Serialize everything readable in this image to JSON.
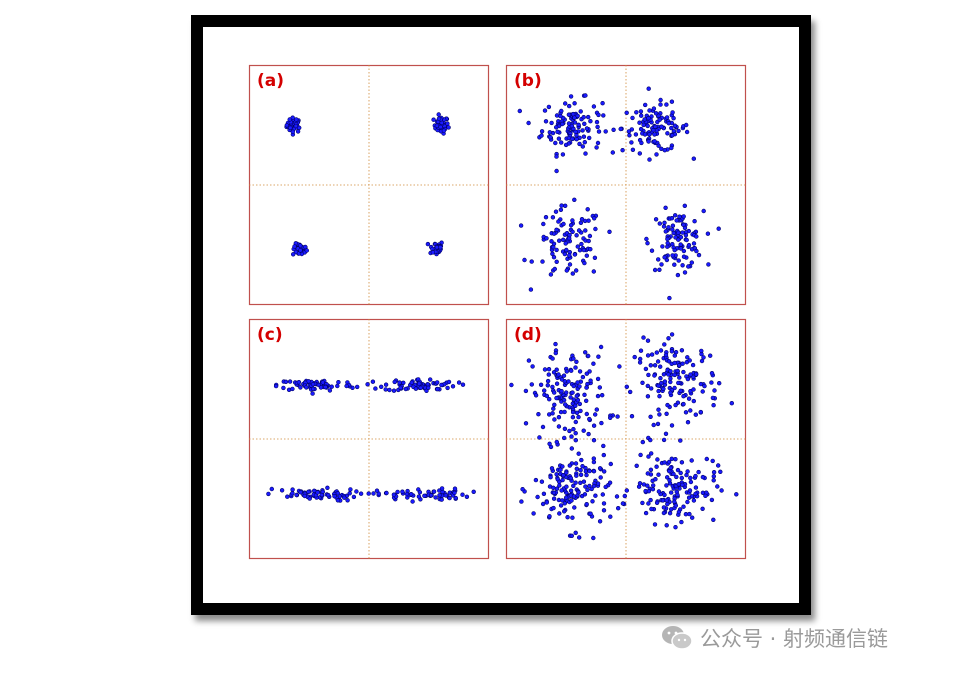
{
  "colors": {
    "frame": "#000000",
    "panel_border": "#c0504d",
    "grid": "#d08a3a",
    "point_fill": "#1a1aff",
    "point_edge": "#000066",
    "label": "#d40000",
    "watermark": "#9a9a9a"
  },
  "watermark": {
    "icon": "wechat-icon",
    "text": "公众号 · 射频通信链"
  },
  "chart_data": [
    {
      "type": "scatter",
      "label": "(a)",
      "xlim": [
        -2,
        2
      ],
      "ylim": [
        -2,
        2
      ],
      "clusters": [
        {
          "center": [
            -1.25,
            1.0
          ],
          "spread": [
            0.06,
            0.06
          ],
          "count": 40
        },
        {
          "center": [
            1.2,
            1.0
          ],
          "spread": [
            0.06,
            0.07
          ],
          "count": 40
        },
        {
          "center": [
            -1.15,
            -1.08
          ],
          "spread": [
            0.06,
            0.05
          ],
          "count": 35
        },
        {
          "center": [
            1.12,
            -1.05
          ],
          "spread": [
            0.06,
            0.06
          ],
          "count": 35
        }
      ]
    },
    {
      "type": "scatter",
      "label": "(b)",
      "xlim": [
        -2,
        2
      ],
      "ylim": [
        -2,
        2
      ],
      "clusters": [
        {
          "center": [
            -0.9,
            0.98
          ],
          "spread": [
            0.25,
            0.22
          ],
          "count": 120
        },
        {
          "center": [
            0.5,
            0.95
          ],
          "spread": [
            0.28,
            0.2
          ],
          "count": 110
        },
        {
          "center": [
            -0.95,
            -0.98
          ],
          "spread": [
            0.28,
            0.3
          ],
          "count": 100
        },
        {
          "center": [
            0.85,
            -0.92
          ],
          "spread": [
            0.22,
            0.24
          ],
          "count": 110
        }
      ]
    },
    {
      "type": "scatter",
      "label": "(c)",
      "xlim": [
        -2,
        2
      ],
      "ylim": [
        -2,
        2
      ],
      "clusters": [
        {
          "center": [
            -0.88,
            0.9
          ],
          "spread": [
            0.32,
            0.05
          ],
          "count": 70
        },
        {
          "center": [
            0.85,
            0.9
          ],
          "spread": [
            0.3,
            0.05
          ],
          "count": 70
        },
        {
          "center": [
            -0.95,
            -0.93
          ],
          "spread": [
            0.4,
            0.05
          ],
          "count": 65
        },
        {
          "center": [
            0.9,
            -0.93
          ],
          "spread": [
            0.38,
            0.05
          ],
          "count": 65
        }
      ]
    },
    {
      "type": "scatter",
      "label": "(d)",
      "xlim": [
        -2,
        2
      ],
      "ylim": [
        -2,
        2
      ],
      "clusters": [
        {
          "center": [
            -0.95,
            0.75
          ],
          "spread": [
            0.32,
            0.38
          ],
          "count": 150
        },
        {
          "center": [
            0.85,
            0.95
          ],
          "spread": [
            0.35,
            0.33
          ],
          "count": 150
        },
        {
          "center": [
            -0.9,
            -0.85
          ],
          "spread": [
            0.32,
            0.32
          ],
          "count": 150
        },
        {
          "center": [
            0.8,
            -0.8
          ],
          "spread": [
            0.35,
            0.3
          ],
          "count": 150
        }
      ]
    }
  ]
}
